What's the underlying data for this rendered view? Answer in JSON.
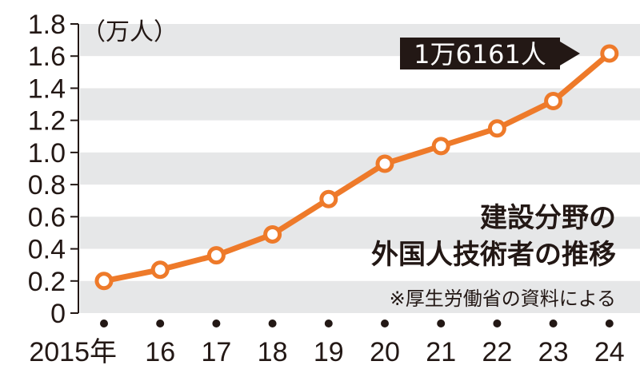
{
  "chart_data": {
    "type": "line",
    "title": "建設分野の外国人技術者の推移",
    "title_lines": [
      "建設分野の",
      "外国人技術者の推移"
    ],
    "source_note": "※厚生労働省の資料による",
    "unit_label": "（万人）",
    "categories": [
      "2015年",
      "16",
      "17",
      "18",
      "19",
      "20",
      "21",
      "22",
      "23",
      "24"
    ],
    "series": [
      {
        "values": [
          0.2,
          0.27,
          0.36,
          0.49,
          0.71,
          0.93,
          1.04,
          1.15,
          1.32,
          1.6161
        ]
      }
    ],
    "yticks": [
      "0",
      "0.2",
      "0.4",
      "0.6",
      "0.8",
      "1.0",
      "1.2",
      "1.4",
      "1.6",
      "1.8"
    ],
    "ylim": [
      0,
      1.8
    ],
    "annotation": "1万6161人",
    "grid": "alternating gray bands",
    "colors": {
      "line": "#ee7a2a",
      "band": "#e6e7e8",
      "text": "#231815",
      "label_bg": "#231815"
    }
  }
}
